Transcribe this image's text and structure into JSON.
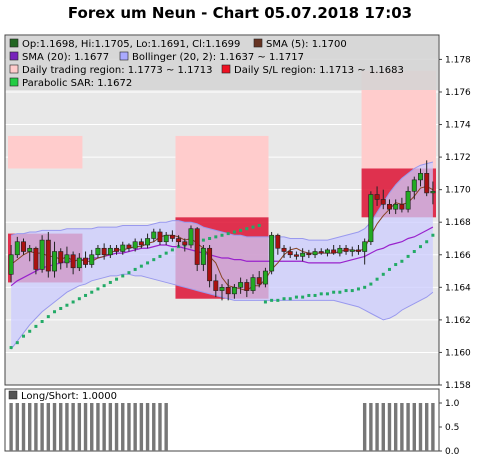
{
  "title": "Forex um Neun - Chart 05.07.2018 17:03",
  "colors": {
    "plot_bg": "#e8e8e8",
    "legend_bg": "#d4d4d4",
    "trading_region": "#ffcccc",
    "sl_region": "#dd1133",
    "bollinger_fill": "#ccccff",
    "bollinger_edge": "#9999ee",
    "sma5": "#884422",
    "sma20": "#9922cc",
    "sar": "#22aa66",
    "bull": "#22aa22",
    "bear": "#aa1111",
    "longshort": "#777777"
  },
  "legend": [
    {
      "id": "ohlc",
      "text": "Op:1.1698, Hi:1.1705, Lo:1.1691, Cl:1.1699",
      "color": "#226622"
    },
    {
      "id": "sma5",
      "text": "SMA (5): 1.1700",
      "color": "#663322"
    },
    {
      "id": "sma20",
      "text": "SMA (20): 1.1677",
      "color": "#7722bb"
    },
    {
      "id": "bollinger",
      "text": "Bollinger (20, 2): 1.1637 ~ 1.1717",
      "color": "#aaaaff"
    },
    {
      "id": "trading",
      "text": "Daily trading region: 1.1773 ~ 1.1713",
      "color": "#ffcccc"
    },
    {
      "id": "sl",
      "text": "Daily S/L region: 1.1713 ~ 1.1683",
      "color": "#ee1122"
    },
    {
      "id": "sar",
      "text": "Parabolic SAR: 1.1672",
      "color": "#22cc44"
    }
  ],
  "chart_data": [
    {
      "type": "candlestick",
      "title": "Forex um Neun - Chart 05.07.2018 17:03",
      "ylim": [
        1.158,
        1.1795
      ],
      "yticks": [
        "1.158",
        "1.160",
        "1.162",
        "1.164",
        "1.166",
        "1.168",
        "1.170",
        "1.172",
        "1.174",
        "1.176",
        "1.178"
      ],
      "grid": true,
      "legend_placement": "top-left",
      "regions": {
        "trading": [
          {
            "from": 0,
            "to": 12,
            "low": 1.1713,
            "high": 1.1733
          },
          {
            "from": 27,
            "to": 42,
            "low": 1.1683,
            "high": 1.1733
          },
          {
            "from": 57,
            "to": 69,
            "low": 1.1713,
            "high": 1.1773
          }
        ],
        "sl": [
          {
            "from": 0,
            "to": 12,
            "low": 1.1643,
            "high": 1.1673
          },
          {
            "from": 27,
            "to": 42,
            "low": 1.1633,
            "high": 1.1683
          },
          {
            "from": 57,
            "to": 69,
            "low": 1.1683,
            "high": 1.1713
          }
        ]
      },
      "candles": [
        [
          1.1648,
          1.1666,
          1.1643,
          1.166
        ],
        [
          1.166,
          1.1671,
          1.1658,
          1.1668
        ],
        [
          1.1668,
          1.167,
          1.166,
          1.1662
        ],
        [
          1.1662,
          1.1666,
          1.1656,
          1.1664
        ],
        [
          1.1664,
          1.1665,
          1.1648,
          1.1651
        ],
        [
          1.1651,
          1.1672,
          1.1649,
          1.1669
        ],
        [
          1.1669,
          1.1674,
          1.1646,
          1.165
        ],
        [
          1.165,
          1.1668,
          1.1646,
          1.1662
        ],
        [
          1.1662,
          1.1664,
          1.1651,
          1.1655
        ],
        [
          1.1655,
          1.1665,
          1.1652,
          1.166
        ],
        [
          1.166,
          1.1662,
          1.1648,
          1.1652
        ],
        [
          1.1652,
          1.1661,
          1.165,
          1.1658
        ],
        [
          1.1658,
          1.1662,
          1.1652,
          1.1654
        ],
        [
          1.1654,
          1.1663,
          1.1652,
          1.166
        ],
        [
          1.166,
          1.1666,
          1.1658,
          1.1664
        ],
        [
          1.1664,
          1.1667,
          1.1657,
          1.166
        ],
        [
          1.166,
          1.1666,
          1.1658,
          1.1664
        ],
        [
          1.1664,
          1.1666,
          1.166,
          1.1662
        ],
        [
          1.1662,
          1.1668,
          1.166,
          1.1666
        ],
        [
          1.1666,
          1.1667,
          1.1662,
          1.1664
        ],
        [
          1.1664,
          1.167,
          1.1662,
          1.1668
        ],
        [
          1.1668,
          1.167,
          1.1664,
          1.1666
        ],
        [
          1.1666,
          1.1673,
          1.1664,
          1.167
        ],
        [
          1.167,
          1.1676,
          1.1668,
          1.1674
        ],
        [
          1.1674,
          1.1676,
          1.1666,
          1.1668
        ],
        [
          1.1668,
          1.1674,
          1.1666,
          1.1672
        ],
        [
          1.1672,
          1.1675,
          1.1668,
          1.167
        ],
        [
          1.167,
          1.1672,
          1.1665,
          1.1668
        ],
        [
          1.1668,
          1.167,
          1.1662,
          1.1666
        ],
        [
          1.1666,
          1.1678,
          1.1664,
          1.1676
        ],
        [
          1.1676,
          1.1677,
          1.165,
          1.1654
        ],
        [
          1.1654,
          1.1666,
          1.165,
          1.1664
        ],
        [
          1.1664,
          1.1666,
          1.164,
          1.1644
        ],
        [
          1.1644,
          1.1648,
          1.1634,
          1.1638
        ],
        [
          1.1638,
          1.1642,
          1.1632,
          1.164
        ],
        [
          1.164,
          1.1645,
          1.1632,
          1.1636
        ],
        [
          1.1636,
          1.1642,
          1.1633,
          1.164
        ],
        [
          1.164,
          1.1646,
          1.1636,
          1.1643
        ],
        [
          1.1643,
          1.1645,
          1.1634,
          1.1638
        ],
        [
          1.1638,
          1.1648,
          1.1636,
          1.1646
        ],
        [
          1.1646,
          1.165,
          1.164,
          1.1642
        ],
        [
          1.1642,
          1.1652,
          1.164,
          1.165
        ],
        [
          1.165,
          1.1674,
          1.1648,
          1.1672
        ],
        [
          1.1672,
          1.1673,
          1.166,
          1.1664
        ],
        [
          1.1664,
          1.1666,
          1.1658,
          1.1662
        ],
        [
          1.1662,
          1.1665,
          1.1658,
          1.166
        ],
        [
          1.166,
          1.1662,
          1.1657,
          1.1659
        ],
        [
          1.1659,
          1.1664,
          1.1656,
          1.1661
        ],
        [
          1.1661,
          1.1663,
          1.1658,
          1.166
        ],
        [
          1.166,
          1.1664,
          1.1658,
          1.1662
        ],
        [
          1.1662,
          1.1664,
          1.166,
          1.1661
        ],
        [
          1.1661,
          1.1664,
          1.1659,
          1.1663
        ],
        [
          1.1663,
          1.1666,
          1.166,
          1.1661
        ],
        [
          1.1661,
          1.1666,
          1.1659,
          1.1664
        ],
        [
          1.1664,
          1.1666,
          1.166,
          1.1662
        ],
        [
          1.1662,
          1.1665,
          1.1659,
          1.1663
        ],
        [
          1.1663,
          1.1666,
          1.166,
          1.1662
        ],
        [
          1.1662,
          1.167,
          1.1654,
          1.1668
        ],
        [
          1.1668,
          1.1699,
          1.1666,
          1.1697
        ],
        [
          1.1697,
          1.1702,
          1.169,
          1.1694
        ],
        [
          1.1694,
          1.17,
          1.1688,
          1.1691
        ],
        [
          1.1691,
          1.1694,
          1.1685,
          1.1688
        ],
        [
          1.1688,
          1.1694,
          1.1685,
          1.1691
        ],
        [
          1.1691,
          1.1695,
          1.1686,
          1.1688
        ],
        [
          1.1688,
          1.1702,
          1.1686,
          1.1699
        ],
        [
          1.1699,
          1.1708,
          1.1694,
          1.1706
        ],
        [
          1.1706,
          1.1713,
          1.1702,
          1.171
        ],
        [
          1.171,
          1.1718,
          1.1696,
          1.1698
        ],
        [
          1.1698,
          1.1705,
          1.1691,
          1.1699
        ]
      ],
      "sma5": [
        1.1654,
        1.1657,
        1.166,
        1.1662,
        1.1661,
        1.1661,
        1.1659,
        1.1659,
        1.1657,
        1.1659,
        1.1656,
        1.1657,
        1.1656,
        1.1656,
        1.1658,
        1.1659,
        1.1661,
        1.1663,
        1.1663,
        1.1664,
        1.1665,
        1.1665,
        1.1667,
        1.1668,
        1.1671,
        1.1672,
        1.1672,
        1.1671,
        1.1669,
        1.167,
        1.1667,
        1.1664,
        1.1659,
        1.1655,
        1.1646,
        1.1641,
        1.164,
        1.1639,
        1.1638,
        1.1641,
        1.1641,
        1.1645,
        1.1651,
        1.1655,
        1.166,
        1.1663,
        1.1664,
        1.1662,
        1.1661,
        1.1661,
        1.1661,
        1.1661,
        1.1661,
        1.1662,
        1.1663,
        1.1663,
        1.1662,
        1.1664,
        1.1672,
        1.1679,
        1.1684,
        1.1688,
        1.1692,
        1.1691,
        1.1692,
        1.1696,
        1.1701,
        1.1702,
        1.17
      ],
      "sma20": [
        1.1641,
        1.1644,
        1.1646,
        1.1648,
        1.165,
        1.1652,
        1.1653,
        1.1654,
        1.1655,
        1.1656,
        1.1656,
        1.1657,
        1.1657,
        1.1658,
        1.1658,
        1.1659,
        1.166,
        1.1661,
        1.1661,
        1.1662,
        1.1663,
        1.1664,
        1.1664,
        1.1665,
        1.1666,
        1.1666,
        1.1665,
        1.1665,
        1.1664,
        1.1663,
        1.1662,
        1.1661,
        1.166,
        1.1659,
        1.1658,
        1.1658,
        1.1657,
        1.1657,
        1.1656,
        1.1656,
        1.1656,
        1.1656,
        1.1656,
        1.1656,
        1.1656,
        1.1656,
        1.1656,
        1.1656,
        1.1655,
        1.1655,
        1.1655,
        1.1655,
        1.1655,
        1.1655,
        1.1656,
        1.1657,
        1.1658,
        1.1659,
        1.1661,
        1.1663,
        1.1664,
        1.1666,
        1.1667,
        1.1668,
        1.167,
        1.1671,
        1.1673,
        1.1675,
        1.1677
      ],
      "boll_upper": [
        1.1672,
        1.1673,
        1.1673,
        1.1674,
        1.1674,
        1.1675,
        1.1675,
        1.1675,
        1.1675,
        1.1676,
        1.1676,
        1.1676,
        1.1676,
        1.1676,
        1.1677,
        1.1677,
        1.1677,
        1.1677,
        1.1678,
        1.1678,
        1.1678,
        1.1678,
        1.1678,
        1.1679,
        1.168,
        1.168,
        1.1681,
        1.1681,
        1.168,
        1.168,
        1.1679,
        1.1677,
        1.1676,
        1.1675,
        1.1674,
        1.1673,
        1.1672,
        1.1672,
        1.1671,
        1.1671,
        1.1671,
        1.1671,
        1.1671,
        1.1671,
        1.1671,
        1.167,
        1.167,
        1.167,
        1.1669,
        1.1669,
        1.1669,
        1.1669,
        1.167,
        1.1671,
        1.1672,
        1.1673,
        1.1674,
        1.1676,
        1.168,
        1.1686,
        1.1692,
        1.1698,
        1.1703,
        1.1707,
        1.171,
        1.1713,
        1.1715,
        1.1716,
        1.1717
      ],
      "boll_lower": [
        1.1602,
        1.1607,
        1.1612,
        1.1617,
        1.1621,
        1.1625,
        1.1628,
        1.1631,
        1.1634,
        1.1637,
        1.1639,
        1.1641,
        1.1642,
        1.1644,
        1.1645,
        1.1646,
        1.1647,
        1.1647,
        1.1648,
        1.1648,
        1.1647,
        1.1647,
        1.1646,
        1.1645,
        1.1644,
        1.1643,
        1.1642,
        1.1641,
        1.164,
        1.1639,
        1.1638,
        1.1637,
        1.1636,
        1.1635,
        1.1634,
        1.1633,
        1.1632,
        1.1632,
        1.1632,
        1.1632,
        1.1632,
        1.1632,
        1.1632,
        1.1632,
        1.1632,
        1.1632,
        1.1632,
        1.1632,
        1.1632,
        1.1632,
        1.1632,
        1.1632,
        1.1632,
        1.1631,
        1.163,
        1.1629,
        1.1628,
        1.1626,
        1.1624,
        1.1622,
        1.162,
        1.1621,
        1.1623,
        1.1626,
        1.1628,
        1.163,
        1.1632,
        1.1634,
        1.1637
      ],
      "sar": [
        1.1603,
        1.1606,
        1.161,
        1.1613,
        1.1616,
        1.1619,
        1.1622,
        1.1625,
        1.1627,
        1.1629,
        1.1631,
        1.1633,
        1.1635,
        1.1637,
        1.1639,
        1.1641,
        1.1643,
        1.1645,
        1.1647,
        1.1649,
        1.1651,
        1.1653,
        1.1655,
        1.1657,
        1.1659,
        1.1661,
        1.1663,
        1.1665,
        1.1666,
        1.1667,
        1.1668,
        1.1669,
        1.167,
        1.1671,
        1.1672,
        1.1673,
        1.1674,
        1.1675,
        1.1676,
        1.1677,
        1.1678,
        1.1631,
        1.1632,
        1.1632,
        1.1633,
        1.1633,
        1.1634,
        1.1634,
        1.1635,
        1.1635,
        1.1636,
        1.1636,
        1.1637,
        1.1637,
        1.1638,
        1.1638,
        1.1639,
        1.164,
        1.1642,
        1.1645,
        1.1648,
        1.1651,
        1.1654,
        1.1656,
        1.1659,
        1.1662,
        1.1665,
        1.1668,
        1.1672
      ]
    },
    {
      "type": "bar",
      "title": "Long/Short: 1.0000",
      "ylim": [
        0.0,
        1.0
      ],
      "yticks": [
        "0.0",
        "0.5",
        "1.0"
      ],
      "values": [
        1,
        1,
        1,
        1,
        1,
        1,
        1,
        1,
        1,
        1,
        1,
        1,
        1,
        1,
        1,
        1,
        1,
        1,
        1,
        1,
        1,
        1,
        1,
        1,
        1,
        1,
        0,
        0,
        0,
        0,
        0,
        0,
        0,
        0,
        0,
        0,
        0,
        0,
        0,
        0,
        0,
        0,
        0,
        0,
        0,
        0,
        0,
        0,
        0,
        0,
        0,
        0,
        0,
        0,
        0,
        0,
        0,
        1,
        1,
        1,
        1,
        1,
        1,
        1,
        1,
        1,
        1,
        1,
        1
      ],
      "grid": false
    }
  ]
}
